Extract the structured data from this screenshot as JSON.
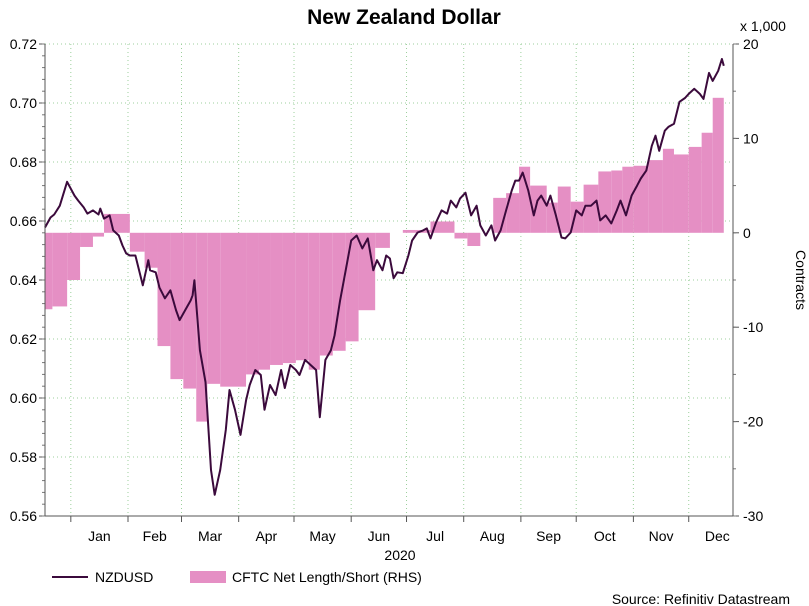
{
  "chart_data": {
    "type": "line",
    "title": "New Zealand Dollar",
    "xlabel": "2020",
    "ylabel_left": "",
    "ylabel_right": "Contracts",
    "right_unit": "x 1,000",
    "source": "Source: Refinitiv Datastream",
    "x_unit": "day of year 2020 (0 = Jan 1)",
    "xlim": [
      -14,
      359
    ],
    "ylim_left": [
      0.56,
      0.72
    ],
    "ylim_right": [
      -30,
      20
    ],
    "left_ticks": [
      "0.56",
      "0.58",
      "0.60",
      "0.62",
      "0.64",
      "0.66",
      "0.68",
      "0.70",
      "0.72"
    ],
    "right_ticks": [
      "-30",
      "-20",
      "-10",
      "0",
      "10",
      "20"
    ],
    "months": [
      {
        "label": "Jan",
        "start": 0
      },
      {
        "label": "Feb",
        "start": 31
      },
      {
        "label": "Mar",
        "start": 60
      },
      {
        "label": "Apr",
        "start": 91
      },
      {
        "label": "May",
        "start": 121
      },
      {
        "label": "Jun",
        "start": 152
      },
      {
        "label": "Jul",
        "start": 182
      },
      {
        "label": "Aug",
        "start": 213
      },
      {
        "label": "Sep",
        "start": 244
      },
      {
        "label": "Oct",
        "start": 274
      },
      {
        "label": "Nov",
        "start": 305
      },
      {
        "label": "Dec",
        "start": 335
      }
    ],
    "grid": true,
    "legend_position": "bottom-left",
    "colors": {
      "line": "#3b0a3c",
      "bars": "#e58fc4",
      "grid": "#9ccf9c"
    },
    "series": [
      {
        "name": "NZDUSD",
        "axis": "left",
        "points": [
          [
            -14,
            0.6578
          ],
          [
            -11,
            0.6612
          ],
          [
            -9,
            0.6622
          ],
          [
            -6,
            0.6652
          ],
          [
            -2,
            0.6733
          ],
          [
            2,
            0.6686
          ],
          [
            4,
            0.6669
          ],
          [
            7,
            0.6646
          ],
          [
            9,
            0.6625
          ],
          [
            12,
            0.6636
          ],
          [
            15,
            0.6622
          ],
          [
            16,
            0.6642
          ],
          [
            18,
            0.6608
          ],
          [
            21,
            0.6619
          ],
          [
            23,
            0.6568
          ],
          [
            26,
            0.6551
          ],
          [
            28,
            0.6517
          ],
          [
            30,
            0.649
          ],
          [
            32,
            0.6483
          ],
          [
            35,
            0.6483
          ],
          [
            39,
            0.6382
          ],
          [
            42,
            0.6467
          ],
          [
            43,
            0.6433
          ],
          [
            46,
            0.6426
          ],
          [
            48,
            0.6375
          ],
          [
            51,
            0.6338
          ],
          [
            54,
            0.6365
          ],
          [
            57,
            0.6298
          ],
          [
            59,
            0.6264
          ],
          [
            62,
            0.6298
          ],
          [
            65,
            0.6331
          ],
          [
            66,
            0.6348
          ],
          [
            67,
            0.6399
          ],
          [
            70,
            0.6162
          ],
          [
            73,
            0.6054
          ],
          [
            76,
            0.5756
          ],
          [
            78,
            0.5672
          ],
          [
            81,
            0.5756
          ],
          [
            84,
            0.5892
          ],
          [
            86,
            0.6027
          ],
          [
            89,
            0.596
          ],
          [
            92,
            0.5875
          ],
          [
            95,
            0.5993
          ],
          [
            97,
            0.6044
          ],
          [
            100,
            0.6095
          ],
          [
            103,
            0.6078
          ],
          [
            105,
            0.596
          ],
          [
            108,
            0.6044
          ],
          [
            111,
            0.601
          ],
          [
            114,
            0.6095
          ],
          [
            116,
            0.6034
          ],
          [
            119,
            0.6112
          ],
          [
            122,
            0.6095
          ],
          [
            124,
            0.6078
          ],
          [
            127,
            0.6129
          ],
          [
            130,
            0.6112
          ],
          [
            133,
            0.6095
          ],
          [
            135,
            0.5935
          ],
          [
            138,
            0.6129
          ],
          [
            141,
            0.6162
          ],
          [
            143,
            0.6213
          ],
          [
            146,
            0.6331
          ],
          [
            149,
            0.6433
          ],
          [
            152,
            0.6534
          ],
          [
            155,
            0.6551
          ],
          [
            158,
            0.6507
          ],
          [
            161,
            0.6541
          ],
          [
            164,
            0.6433
          ],
          [
            166,
            0.6467
          ],
          [
            169,
            0.6433
          ],
          [
            171,
            0.6483
          ],
          [
            173,
            0.6473
          ],
          [
            175,
            0.6406
          ],
          [
            177,
            0.6426
          ],
          [
            180,
            0.6423
          ],
          [
            183,
            0.6483
          ],
          [
            185,
            0.6534
          ],
          [
            188,
            0.6561
          ],
          [
            191,
            0.6568
          ],
          [
            193,
            0.6575
          ],
          [
            195,
            0.6541
          ],
          [
            198,
            0.6595
          ],
          [
            201,
            0.6636
          ],
          [
            204,
            0.6625
          ],
          [
            206,
            0.6669
          ],
          [
            209,
            0.6646
          ],
          [
            211,
            0.6676
          ],
          [
            214,
            0.6696
          ],
          [
            217,
            0.6619
          ],
          [
            220,
            0.6652
          ],
          [
            222,
            0.6585
          ],
          [
            225,
            0.6551
          ],
          [
            228,
            0.6585
          ],
          [
            230,
            0.6534
          ],
          [
            233,
            0.6568
          ],
          [
            236,
            0.6636
          ],
          [
            239,
            0.6703
          ],
          [
            241,
            0.6737
          ],
          [
            243,
            0.6737
          ],
          [
            245,
            0.6764
          ],
          [
            248,
            0.6703
          ],
          [
            251,
            0.6619
          ],
          [
            253,
            0.6669
          ],
          [
            255,
            0.6686
          ],
          [
            258,
            0.6652
          ],
          [
            260,
            0.6686
          ],
          [
            263,
            0.6619
          ],
          [
            266,
            0.6544
          ],
          [
            268,
            0.6541
          ],
          [
            271,
            0.6561
          ],
          [
            274,
            0.6636
          ],
          [
            277,
            0.6619
          ],
          [
            279,
            0.6652
          ],
          [
            282,
            0.6652
          ],
          [
            285,
            0.6669
          ],
          [
            287,
            0.6602
          ],
          [
            290,
            0.6619
          ],
          [
            293,
            0.6592
          ],
          [
            296,
            0.6636
          ],
          [
            298,
            0.6669
          ],
          [
            301,
            0.6619
          ],
          [
            304,
            0.6686
          ],
          [
            307,
            0.672
          ],
          [
            309,
            0.6744
          ],
          [
            312,
            0.6771
          ],
          [
            315,
            0.6855
          ],
          [
            317,
            0.6889
          ],
          [
            319,
            0.6838
          ],
          [
            322,
            0.6906
          ],
          [
            324,
            0.6919
          ],
          [
            327,
            0.693
          ],
          [
            330,
            0.7004
          ],
          [
            333,
            0.7017
          ],
          [
            335,
            0.7031
          ],
          [
            338,
            0.7048
          ],
          [
            341,
            0.7031
          ],
          [
            343,
            0.7014
          ],
          [
            346,
            0.7102
          ],
          [
            348,
            0.7075
          ],
          [
            351,
            0.7109
          ],
          [
            353,
            0.7149
          ],
          [
            354,
            0.7126
          ]
        ]
      },
      {
        "name": "CFTC Net Length/Short (RHS)",
        "axis": "right",
        "unit": "thousand contracts",
        "steps": [
          [
            -14,
            -8.1
          ],
          [
            -10,
            -7.8
          ],
          [
            -2,
            -5.0
          ],
          [
            5,
            -1.5
          ],
          [
            12,
            -0.4
          ],
          [
            18,
            2.0
          ],
          [
            32,
            -2.0
          ],
          [
            40,
            -3.7
          ],
          [
            47,
            -12.0
          ],
          [
            54,
            -15.5
          ],
          [
            61,
            -16.5
          ],
          [
            68,
            -20.0
          ],
          [
            74,
            -16.0
          ],
          [
            81,
            -16.3
          ],
          [
            95,
            -15.0
          ],
          [
            102,
            -14.5
          ],
          [
            108,
            -14.0
          ],
          [
            115,
            -13.8
          ],
          [
            122,
            -13.5
          ],
          [
            129,
            -14.5
          ],
          [
            135,
            -13.0
          ],
          [
            142,
            -12.5
          ],
          [
            149,
            -11.5
          ],
          [
            156,
            -8.2
          ],
          [
            165,
            -1.6
          ],
          [
            173,
            0
          ],
          [
            180,
            0.3
          ],
          [
            195,
            1.2
          ],
          [
            208,
            -0.6
          ],
          [
            215,
            -1.4
          ],
          [
            222,
            0
          ],
          [
            229,
            3.7
          ],
          [
            236,
            4.2
          ],
          [
            243,
            7.0
          ],
          [
            249,
            5.0
          ],
          [
            258,
            3.2
          ],
          [
            264,
            4.9
          ],
          [
            271,
            3.3
          ],
          [
            278,
            5.1
          ],
          [
            286,
            6.5
          ],
          [
            293,
            6.6
          ],
          [
            299,
            7.0
          ],
          [
            305,
            7.1
          ],
          [
            313,
            7.7
          ],
          [
            321,
            8.9
          ],
          [
            327,
            8.3
          ],
          [
            335,
            9.1
          ],
          [
            342,
            10.6
          ],
          [
            348,
            14.3
          ]
        ],
        "end": 354
      }
    ]
  }
}
